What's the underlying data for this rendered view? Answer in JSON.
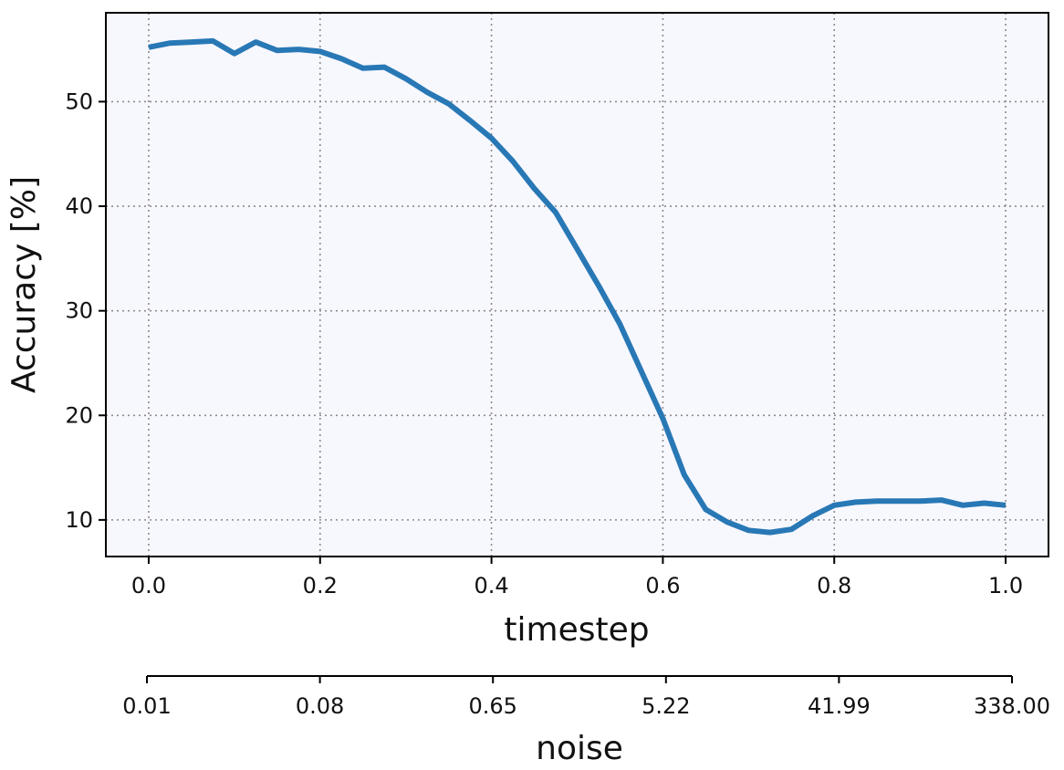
{
  "chart_data": {
    "type": "line",
    "xlabel": "timestep",
    "ylabel": "Accuracy [%]",
    "xlim": [
      -0.05,
      1.05
    ],
    "ylim": [
      6.5,
      58.5
    ],
    "xticks": [
      "0.0",
      "0.2",
      "0.4",
      "0.6",
      "0.8",
      "1.0"
    ],
    "yticks": [
      "10",
      "20",
      "30",
      "40",
      "50"
    ],
    "grid": true,
    "secondary_axis": {
      "label": "noise",
      "ticks": [
        "0.01",
        "0.08",
        "0.65",
        "5.22",
        "41.99",
        "338.00"
      ]
    },
    "series": [
      {
        "color": "#2878b5",
        "x": [
          0.0,
          0.025,
          0.05,
          0.075,
          0.1,
          0.125,
          0.15,
          0.175,
          0.2,
          0.225,
          0.25,
          0.275,
          0.3,
          0.325,
          0.35,
          0.375,
          0.4,
          0.425,
          0.45,
          0.475,
          0.5,
          0.525,
          0.55,
          0.575,
          0.6,
          0.625,
          0.65,
          0.675,
          0.7,
          0.725,
          0.75,
          0.775,
          0.8,
          0.825,
          0.85,
          0.875,
          0.9,
          0.925,
          0.95,
          0.975,
          1.0
        ],
        "y": [
          55.2,
          55.6,
          55.7,
          55.8,
          54.6,
          55.7,
          54.9,
          55.0,
          54.8,
          54.1,
          53.2,
          53.3,
          52.2,
          50.9,
          49.8,
          48.2,
          46.5,
          44.3,
          41.7,
          39.4,
          35.9,
          32.4,
          28.7,
          24.2,
          19.7,
          14.3,
          11.0,
          9.8,
          9.0,
          8.8,
          9.1,
          10.4,
          11.4,
          11.7,
          11.8,
          11.8,
          11.8,
          11.9,
          11.4,
          11.6,
          11.4
        ]
      }
    ]
  }
}
